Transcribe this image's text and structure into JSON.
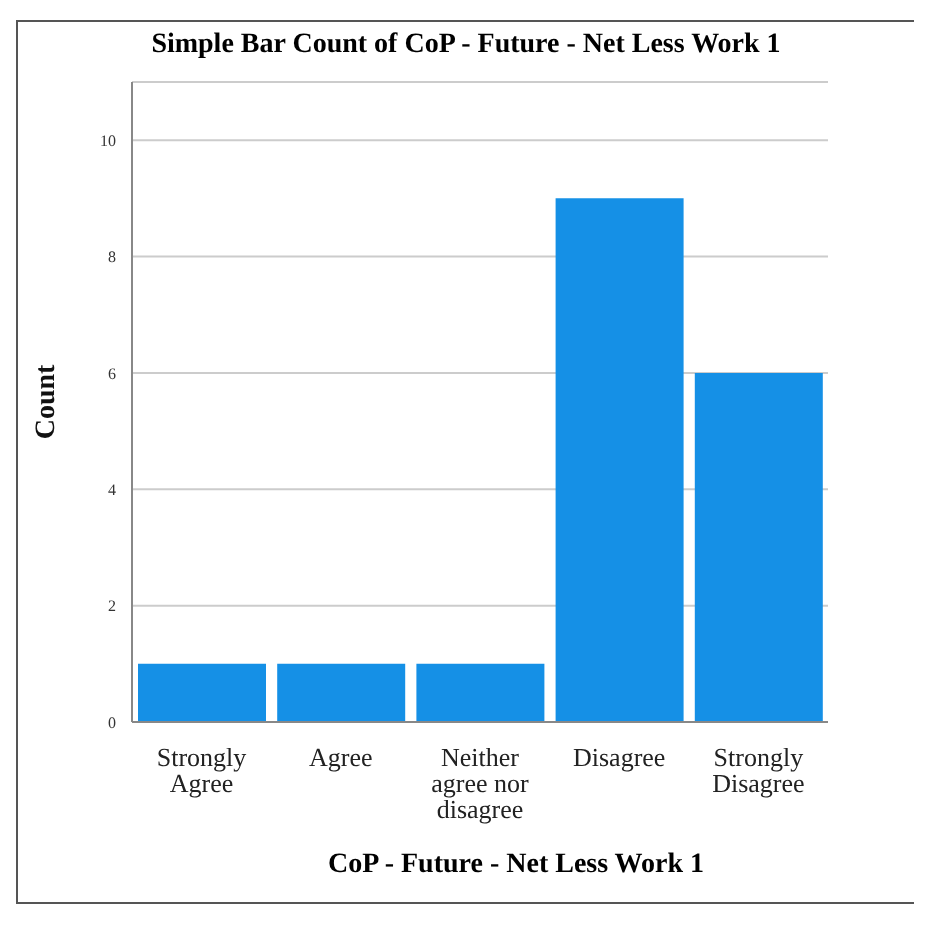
{
  "chart_data": {
    "type": "bar",
    "title": "Simple Bar Count of CoP - Future - Net Less Work 1",
    "xlabel": "CoP - Future - Net Less Work 1",
    "ylabel": "Count",
    "categories": [
      "Strongly Agree",
      "Agree",
      "Neither agree nor disagree",
      "Disagree",
      "Strongly Disagree"
    ],
    "values": [
      1,
      1,
      1,
      9,
      6
    ],
    "color": "#1590e6",
    "ylim": [
      0,
      11
    ],
    "yticks": [
      0,
      2,
      4,
      6,
      8,
      10
    ],
    "grid": "y",
    "legend": false
  }
}
